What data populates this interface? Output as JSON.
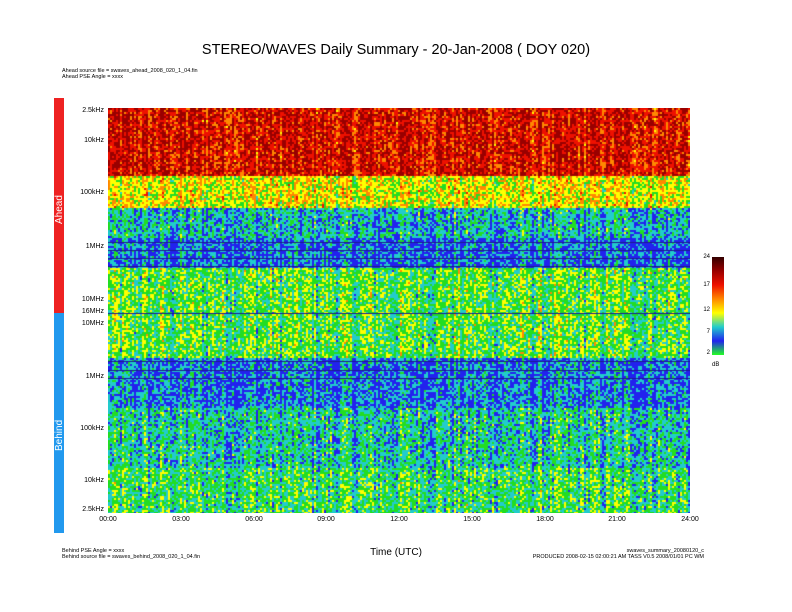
{
  "title": "STEREO/WAVES Daily Summary - 20-Jan-2008 ( DOY 020)",
  "header_lines": [
    "Ahead source file = swaves_ahead_2008_020_1_04.fin",
    "Ahead PSE Angle = xxxx"
  ],
  "footer_left": [
    "Behind PSE Angle = xxxx",
    "Behind source file = swaves_behind_2008_020_1_04.fin"
  ],
  "footer_right": [
    "swaves_summary_20080120_c",
    "PRODUCED 2008-02-15 02:00:21 AM TASS V0.5 2008/01/01 PC WM"
  ],
  "chart_data": {
    "type": "heatmap",
    "title": "STEREO/WAVES Daily Summary - 20-Jan-2008 ( DOY 020)",
    "xlabel": "Time (UTC)",
    "x_ticks": [
      "00:00",
      "03:00",
      "06:00",
      "09:00",
      "12:00",
      "15:00",
      "18:00",
      "21:00",
      "24:00"
    ],
    "xlim_hours": [
      0,
      24
    ],
    "panels": [
      {
        "name": "Ahead",
        "color": "#ee2222",
        "y_ticks": [
          "2.5kHz",
          "10kHz",
          "100kHz",
          "1MHz",
          "10MHz",
          "16MHz"
        ]
      },
      {
        "name": "Behind",
        "color": "#2299ee",
        "y_ticks": [
          "16MHz",
          "10MHz",
          "1MHz",
          "100kHz",
          "10kHz",
          "2.5kHz"
        ]
      }
    ],
    "colorbar": {
      "unit": "dB",
      "ticks": [
        2,
        7,
        12,
        17,
        24
      ],
      "range": [
        2,
        24
      ],
      "colors": [
        "#22ff22",
        "#2222ee",
        "#22cccc",
        "#ffff00",
        "#ff8800",
        "#ee1100",
        "#990000",
        "#330000"
      ]
    }
  }
}
